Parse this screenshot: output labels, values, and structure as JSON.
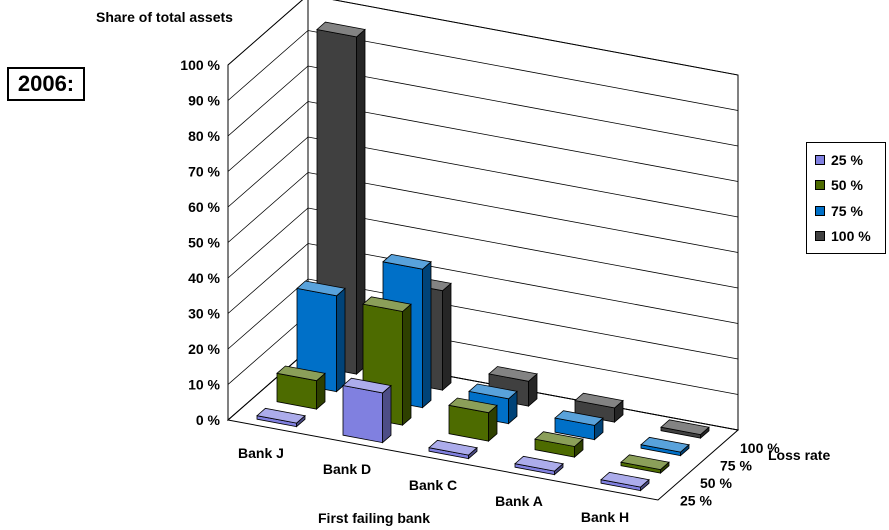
{
  "year_label": "2006:",
  "chart_data": {
    "type": "bar3d",
    "title": "",
    "ylabel": "Share of total assets",
    "xlabel": "First failing bank",
    "zlabel": "Loss rate",
    "ylim": [
      0,
      100
    ],
    "y_ticks": [
      "0 %",
      "10 %",
      "20 %",
      "30 %",
      "40 %",
      "50 %",
      "60 %",
      "70 %",
      "80 %",
      "90 %",
      "100 %"
    ],
    "categories": [
      "Bank J",
      "Bank D",
      "Bank C",
      "Bank A",
      "Bank H"
    ],
    "series": [
      {
        "name": "25 %",
        "color": "#8080E0",
        "values": [
          1,
          14,
          1,
          1,
          1
        ]
      },
      {
        "name": "50 %",
        "color": "#4D6B00",
        "values": [
          8,
          32,
          8,
          3,
          1
        ]
      },
      {
        "name": "75 %",
        "color": "#0070C8",
        "values": [
          27,
          39,
          7,
          4,
          1
        ]
      },
      {
        "name": "100 %",
        "color": "#404040",
        "values": [
          95,
          28,
          7,
          4,
          1
        ]
      }
    ],
    "legend_position": "right",
    "grid": true
  }
}
